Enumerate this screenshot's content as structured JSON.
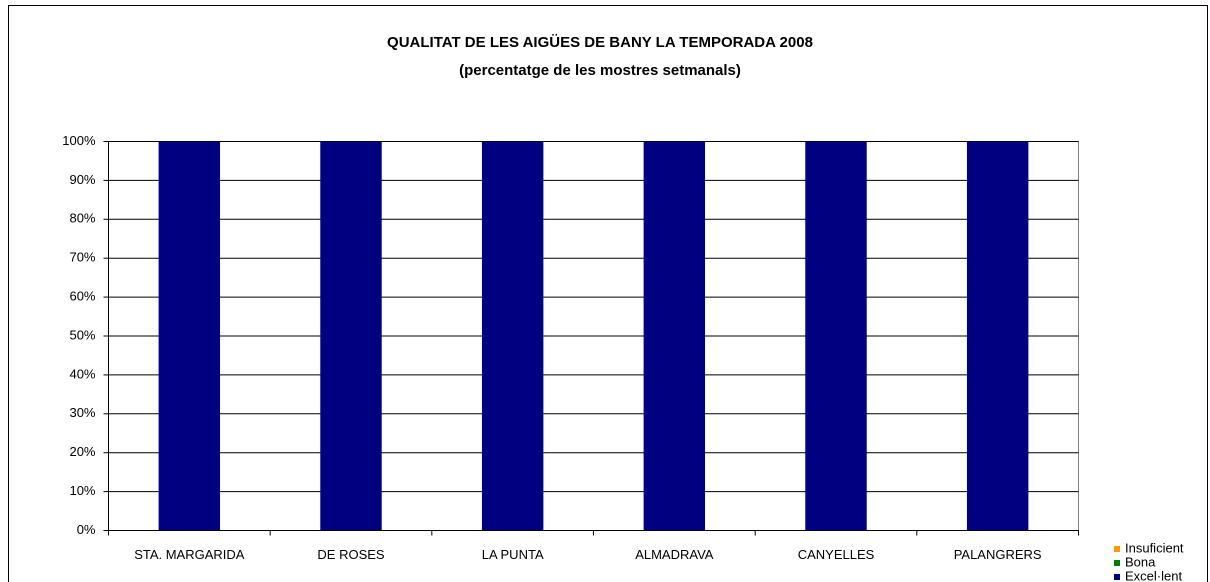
{
  "chart_data": {
    "type": "stacked_bar",
    "title": "QUALITAT DE LES AIGÜES DE BANY LA TEMPORADA 2008",
    "subtitle": "(percentatge de les mostres setmanals)",
    "categories": [
      "STA. MARGARIDA",
      "DE ROSES",
      "LA PUNTA",
      "ALMADRAVA",
      "CANYELLES",
      "PALANGRERS"
    ],
    "series": [
      {
        "name": "Excel·lent",
        "color": "#000080",
        "values": [
          100,
          100,
          100,
          100,
          100,
          100
        ]
      },
      {
        "name": "Bona",
        "color": "#008000",
        "values": [
          0,
          0,
          0,
          0,
          0,
          0
        ]
      },
      {
        "name": "Insuficient",
        "color": "#ff9900",
        "values": [
          0,
          0,
          0,
          0,
          0,
          0
        ]
      }
    ],
    "ylim": [
      0,
      100
    ],
    "yticks": [
      {
        "value": 0,
        "label": "0%"
      },
      {
        "value": 10,
        "label": "10%"
      },
      {
        "value": 20,
        "label": "20%"
      },
      {
        "value": 30,
        "label": "30%"
      },
      {
        "value": 40,
        "label": "40%"
      },
      {
        "value": 50,
        "label": "50%"
      },
      {
        "value": 60,
        "label": "60%"
      },
      {
        "value": 70,
        "label": "70%"
      },
      {
        "value": 80,
        "label": "80%"
      },
      {
        "value": 90,
        "label": "90%"
      },
      {
        "value": 100,
        "label": "100%"
      }
    ],
    "grid": true,
    "legend": "bottom-right"
  }
}
